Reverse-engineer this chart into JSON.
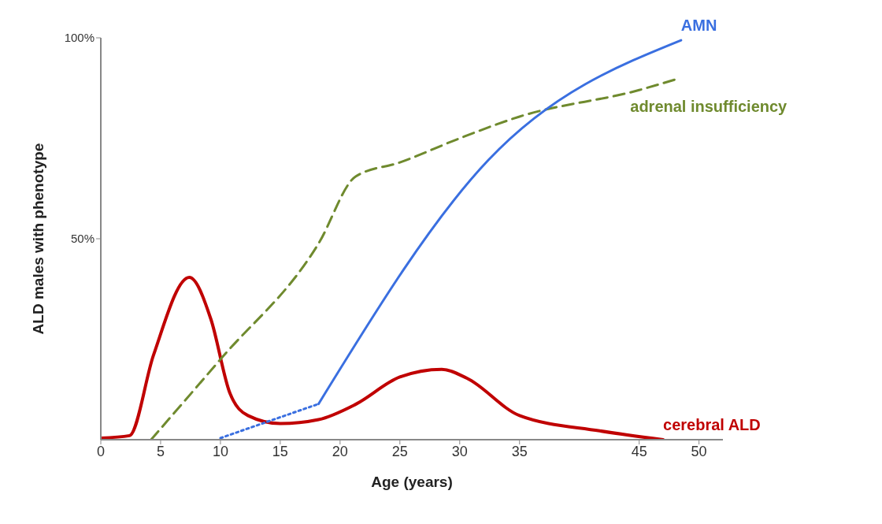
{
  "chart_data": {
    "type": "line",
    "xlabel": "Age (years)",
    "ylabel": "ALD males  with phenotype",
    "xlim": [
      0,
      52
    ],
    "xticks": [
      0,
      5,
      10,
      15,
      20,
      25,
      30,
      35,
      45,
      50
    ],
    "ylim": [
      0,
      100
    ],
    "yticks": [
      {
        "value": 50,
        "label": "50%"
      },
      {
        "value": 100,
        "label": "100%"
      }
    ],
    "marker": "none",
    "series": [
      {
        "name": "cerebral ALD",
        "color": "#c00000",
        "line_style": "solid",
        "x": [
          0,
          2.4,
          4.4,
          7.4,
          9.2,
          10.8,
          12.3,
          15,
          18.2,
          21.3,
          25,
          28.5,
          30.6,
          35,
          41.7,
          47
        ],
        "values": [
          0.4,
          1,
          21,
          40.4,
          30,
          11.5,
          6,
          4,
          5,
          8.8,
          15.6,
          17.5,
          15.3,
          6,
          2.2,
          0
        ]
      },
      {
        "name": "adrenal insufficiency",
        "color": "#6f8a2e",
        "line_style": "dashed",
        "x": [
          4.2,
          10,
          18.2,
          21.3,
          25,
          30,
          35,
          45,
          48.2
        ],
        "values": [
          0,
          20,
          48.8,
          65.5,
          69,
          75,
          80.4,
          87,
          89.8
        ]
      },
      {
        "color": "#3a6fe0",
        "line_style": "dotted",
        "x": [
          10,
          18.2
        ],
        "values": [
          0.4,
          8.9
        ]
      },
      {
        "name": "AMN",
        "color": "#3a6fe0",
        "line_style": "solid",
        "x": [
          18.2,
          32.4,
          48.5
        ],
        "values": [
          8.9,
          69.6,
          99.4
        ]
      }
    ]
  }
}
